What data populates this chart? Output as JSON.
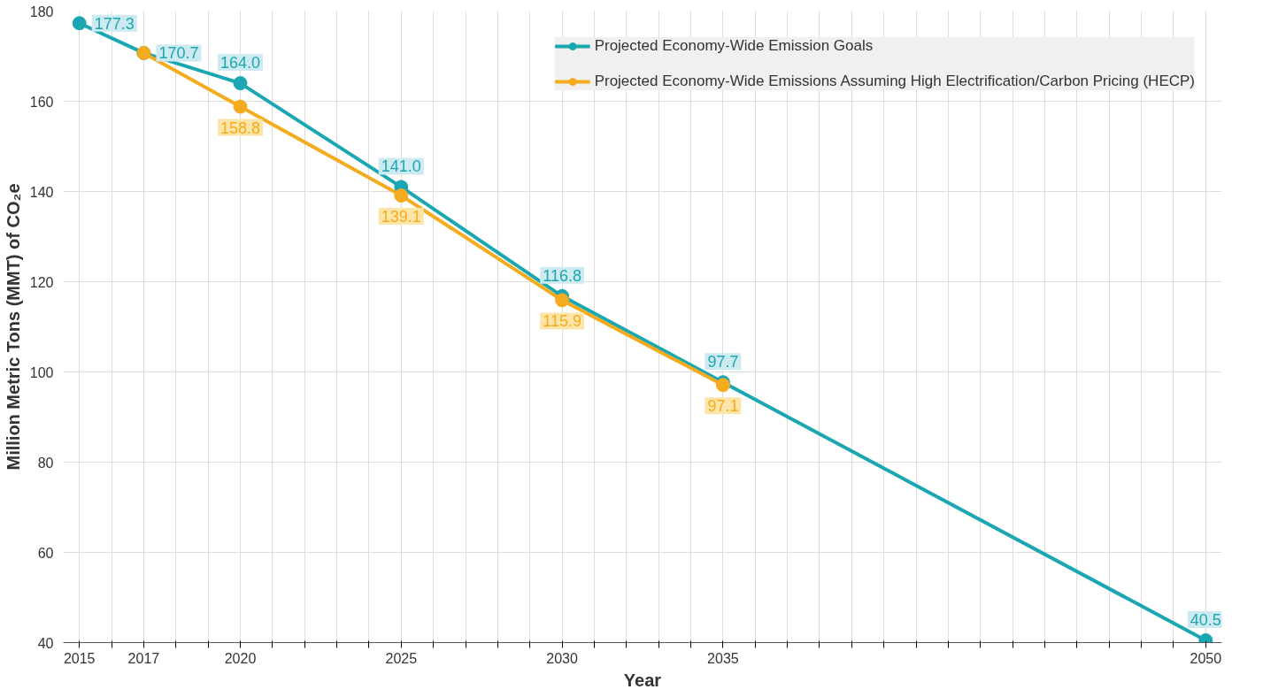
{
  "chart_data": {
    "type": "line",
    "xlabel": "Year",
    "ylabel": "Million Metric Tons (MMT) of CO₂e",
    "xlim": [
      2014.5,
      2050.5
    ],
    "ylim": [
      40,
      180
    ],
    "xticks": [
      2015,
      {
        "value": 2016,
        "label": null
      },
      2017,
      {
        "value": 2018,
        "label": null
      },
      {
        "value": 2019,
        "label": null
      },
      2020,
      {
        "value": 2021,
        "label": null
      },
      {
        "value": 2022,
        "label": null
      },
      {
        "value": 2023,
        "label": null
      },
      {
        "value": 2024,
        "label": null
      },
      2025,
      {
        "value": 2026,
        "label": null
      },
      {
        "value": 2027,
        "label": null
      },
      {
        "value": 2028,
        "label": null
      },
      {
        "value": 2029,
        "label": null
      },
      2030,
      {
        "value": 2031,
        "label": null
      },
      {
        "value": 2032,
        "label": null
      },
      {
        "value": 2033,
        "label": null
      },
      {
        "value": 2034,
        "label": null
      },
      2035,
      {
        "value": 2036,
        "label": null
      },
      {
        "value": 2037,
        "label": null
      },
      {
        "value": 2038,
        "label": null
      },
      {
        "value": 2039,
        "label": null
      },
      {
        "value": 2040,
        "label": null
      },
      {
        "value": 2041,
        "label": null
      },
      {
        "value": 2042,
        "label": null
      },
      {
        "value": 2043,
        "label": null
      },
      {
        "value": 2044,
        "label": null
      },
      {
        "value": 2045,
        "label": null
      },
      {
        "value": 2046,
        "label": null
      },
      {
        "value": 2047,
        "label": null
      },
      {
        "value": 2048,
        "label": null
      },
      {
        "value": 2049,
        "label": null
      },
      2050
    ],
    "yticks": [
      40,
      60,
      80,
      100,
      120,
      140,
      160,
      180
    ],
    "grid": true,
    "legend": "top right",
    "marker": "circle",
    "line_style": "solid",
    "series": [
      {
        "name": "Projected Economy-Wide Emission Goals",
        "color": "#1ba7b1",
        "x": [
          2015,
          2017,
          2020,
          2025,
          2030,
          2035,
          2050
        ],
        "values": [
          177.3,
          170.7,
          164.0,
          141.0,
          116.8,
          97.7,
          40.5
        ],
        "value_labels": [
          "177.3",
          "170.7",
          "164.0",
          "141.0",
          "116.8",
          "97.7",
          "40.5"
        ]
      },
      {
        "name": "Projected Economy-Wide Emissions Assuming High Electrification/Carbon Pricing (HECP)",
        "color": "#f5ab1e",
        "x": [
          2017,
          2020,
          2025,
          2030,
          2035
        ],
        "values": [
          170.7,
          158.8,
          139.1,
          115.9,
          97.1
        ],
        "value_labels": [
          null,
          "158.8",
          "139.1",
          "115.9",
          "97.1"
        ]
      }
    ]
  }
}
